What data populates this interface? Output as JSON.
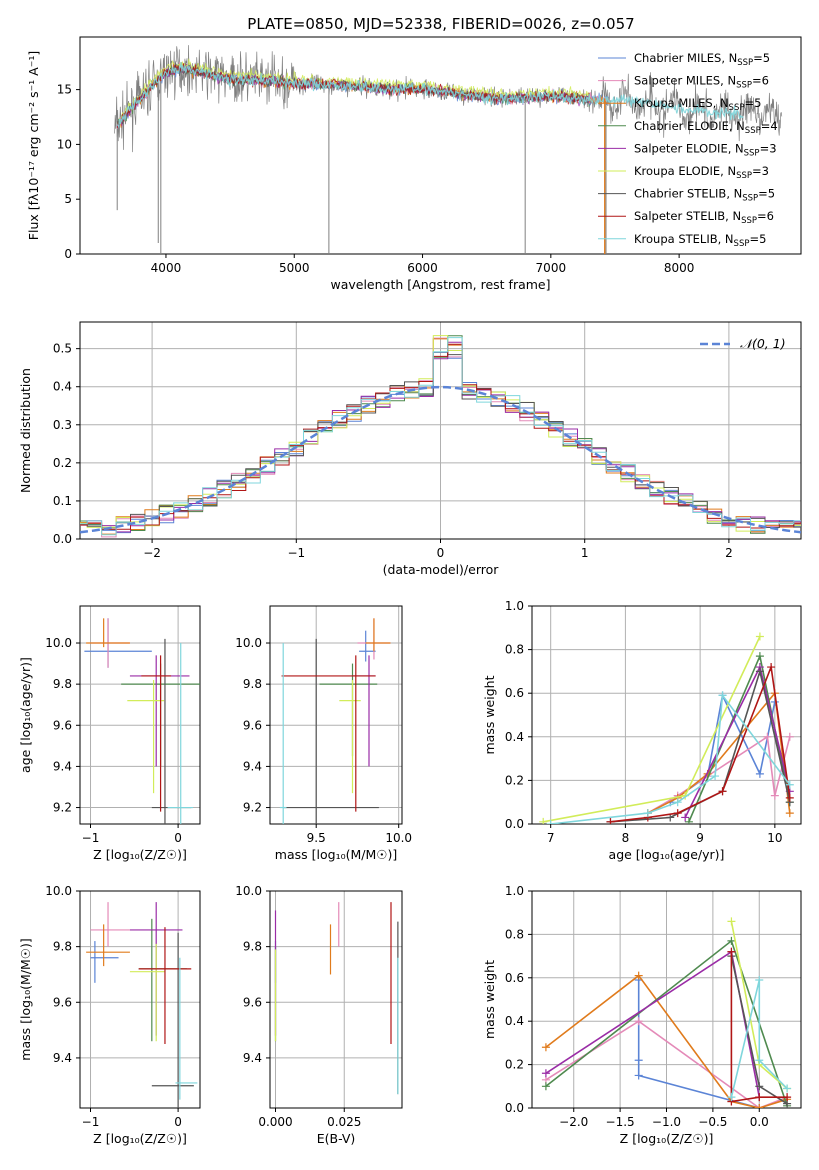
{
  "title": "PLATE=0850, MJD=52338, FIBERID=0026, z=0.057",
  "colors": {
    "chabrier_miles": "#5b84d6",
    "salpeter_miles": "#e48ab8",
    "kroupa_miles": "#e07b1c",
    "chabrier_elodie": "#4f8a4f",
    "salpeter_elodie": "#9a2ca6",
    "kroupa_elodie": "#d2ec5a",
    "chabrier_stelib": "#555555",
    "salpeter_stelib": "#b01616",
    "kroupa_stelib": "#7fd6dc",
    "data": "#808080",
    "normal": "#5b84d6",
    "grid": "#b0b0b0"
  },
  "chart_data": [
    {
      "id": "spectrum",
      "type": "line",
      "xlabel": "wavelength [Angstrom, rest frame]",
      "ylabel": "Flux [fλ10⁻¹⁷ erg cm⁻² s⁻¹ A⁻¹]",
      "xlim": [
        3330,
        8950
      ],
      "ylim": [
        0,
        19.8
      ],
      "xticks": [
        4000,
        5000,
        6000,
        7000,
        8000
      ],
      "yticks": [
        0,
        5,
        10,
        15
      ],
      "grid": false,
      "legend_position": "top-right",
      "legend": [
        {
          "label": "Chabrier MILES, N",
          "sub": "SSP",
          "val": "=5"
        },
        {
          "label": "Salpeter MILES, N",
          "sub": "SSP",
          "val": "=6"
        },
        {
          "label": "Kroupa MILES, N",
          "sub": "SSP",
          "val": "=5"
        },
        {
          "label": "Chabrier ELODIE, N",
          "sub": "SSP",
          "val": "=4"
        },
        {
          "label": "Salpeter ELODIE, N",
          "sub": "SSP",
          "val": "=3"
        },
        {
          "label": "Kroupa ELODIE, N",
          "sub": "SSP",
          "val": "=3"
        },
        {
          "label": "Chabrier STELIB, N",
          "sub": "SSP",
          "val": "=5"
        },
        {
          "label": "Salpeter STELIB, N",
          "sub": "SSP",
          "val": "=6"
        },
        {
          "label": "Kroupa STELIB, N",
          "sub": "SSP",
          "val": "=5"
        }
      ],
      "continuum": {
        "x": [
          3600,
          3750,
          3900,
          4000,
          4100,
          4300,
          4500,
          4800,
          5000,
          5200,
          5500,
          5800,
          6000,
          6300,
          6600,
          6800,
          7000,
          7200,
          7400,
          7600,
          7800,
          8000,
          8200,
          8500,
          8800
        ],
        "y": [
          11.5,
          13.5,
          15.5,
          16.5,
          17.0,
          16.5,
          16.0,
          15.8,
          15.6,
          15.5,
          15.3,
          15.0,
          15.1,
          14.6,
          14.2,
          14.3,
          14.4,
          14.2,
          14.0,
          14.0,
          13.7,
          13.3,
          13.0,
          12.8,
          12.6
        ]
      }
    },
    {
      "id": "residuals",
      "type": "bar",
      "xlabel": "(data-model)/error",
      "ylabel": "Normed distribution",
      "xlim": [
        -2.5,
        2.5
      ],
      "ylim": [
        0,
        0.57
      ],
      "xticks": [
        -2,
        -1,
        0,
        1,
        2
      ],
      "xticklabels": [
        "−2",
        "−1",
        "0",
        "1",
        "2"
      ],
      "yticks": [
        0.0,
        0.1,
        0.2,
        0.3,
        0.4,
        0.5
      ],
      "grid": true,
      "legend_position": "top-right",
      "legend_label": "𝒩(0, 1)",
      "bin_width": 0.1
    },
    {
      "id": "age-vs-Z",
      "type": "scatter",
      "xlabel": "Z [log₁₀(Z/Z☉)]",
      "ylabel": "age  [log₁₀(age/yr)]",
      "xlim": [
        -1.12,
        0.25
      ],
      "ylim": [
        9.12,
        10.18
      ],
      "xticks": [
        -1,
        0
      ],
      "xticklabels": [
        "−1",
        "0"
      ],
      "yticks": [
        9.2,
        9.4,
        9.6,
        9.8,
        10.0
      ],
      "grid": true,
      "points": [
        {
          "m": "chabrier_miles",
          "x": -0.8,
          "xerr": [
            0.27,
            0.5
          ],
          "y": 9.96,
          "yerr": [
            0.08,
            0.16
          ]
        },
        {
          "m": "salpeter_miles",
          "x": -0.8,
          "xerr": [
            0.2,
            0.25
          ],
          "y": 10.0,
          "yerr": [
            0.12,
            0.12
          ]
        },
        {
          "m": "kroupa_miles",
          "x": -0.85,
          "xerr": [
            0.2,
            0.3
          ],
          "y": 10.0,
          "yerr": [
            0.02,
            0.12
          ]
        },
        {
          "m": "chabrier_elodie",
          "x": -0.2,
          "xerr": [
            0.45,
            0.45
          ],
          "y": 9.8,
          "yerr": [
            0.4,
            0.1
          ]
        },
        {
          "m": "salpeter_elodie",
          "x": -0.25,
          "xerr": [
            0.3,
            0.38
          ],
          "y": 9.84,
          "yerr": [
            0.44,
            0.1
          ]
        },
        {
          "m": "kroupa_elodie",
          "x": -0.28,
          "xerr": [
            0.3,
            0.12
          ],
          "y": 9.72,
          "yerr": [
            0.45,
            0.1
          ]
        },
        {
          "m": "chabrier_stelib",
          "x": -0.15,
          "xerr": [
            0.15,
            0.3
          ],
          "y": 9.2,
          "yerr": [
            0.1,
            0.82
          ]
        },
        {
          "m": "salpeter_stelib",
          "x": -0.2,
          "xerr": [
            0.22,
            0.12
          ],
          "y": 9.84,
          "yerr": [
            0.66,
            0.1
          ]
        },
        {
          "m": "kroupa_stelib",
          "x": 0.03,
          "xerr": [
            0.15,
            0.14
          ],
          "y": 9.2,
          "yerr": [
            0.1,
            0.8
          ]
        }
      ]
    },
    {
      "id": "age-vs-mass",
      "type": "scatter",
      "xlabel": "mass [log₁₀(M/M☉)]",
      "xlim": [
        9.22,
        10.02
      ],
      "ylim": [
        9.12,
        10.18
      ],
      "xticks": [
        9.5,
        10.0
      ],
      "xticklabels": [
        "9.5",
        "10.0"
      ],
      "yticks": [
        9.2,
        9.4,
        9.6,
        9.8,
        10.0
      ],
      "grid": true,
      "points": [
        {
          "m": "chabrier_miles",
          "x": 9.8,
          "xerr": [
            0.04,
            0.06
          ],
          "y": 9.96,
          "yerr": [
            0.05,
            0.1
          ]
        },
        {
          "m": "salpeter_miles",
          "x": 9.85,
          "xerr": [
            0.1,
            0.1
          ],
          "y": 10.0,
          "yerr": [
            0.08,
            0.12
          ]
        },
        {
          "m": "kroupa_miles",
          "x": 9.85,
          "xerr": [
            0.05,
            0.1
          ],
          "y": 10.0,
          "yerr": [
            0.04,
            0.12
          ]
        },
        {
          "m": "chabrier_elodie",
          "x": 9.72,
          "xerr": [
            0.2,
            0.15
          ],
          "y": 9.8,
          "yerr": [
            0.35,
            0.1
          ]
        },
        {
          "m": "salpeter_elodie",
          "x": 9.82,
          "xerr": [
            0.1,
            0.04
          ],
          "y": 9.84,
          "yerr": [
            0.44,
            0.1
          ]
        },
        {
          "m": "kroupa_elodie",
          "x": 9.72,
          "xerr": [
            0.08,
            0.05
          ],
          "y": 9.72,
          "yerr": [
            0.45,
            0.1
          ]
        },
        {
          "m": "chabrier_stelib",
          "x": 9.5,
          "xerr": [
            0.2,
            0.38
          ],
          "y": 9.2,
          "yerr": [
            0.1,
            0.82
          ]
        },
        {
          "m": "salpeter_stelib",
          "x": 9.74,
          "xerr": [
            0.45,
            0.12
          ],
          "y": 9.84,
          "yerr": [
            0.66,
            0.1
          ]
        },
        {
          "m": "kroupa_stelib",
          "x": 9.3,
          "xerr": [
            0.02,
            0.02
          ],
          "y": 9.2,
          "yerr": [
            0.1,
            0.8
          ]
        }
      ]
    },
    {
      "id": "weight-vs-age",
      "type": "line",
      "xlabel": "age  [log₁₀(age/yr)]",
      "ylabel": "mass weight",
      "xlim": [
        6.75,
        10.35
      ],
      "ylim": [
        0,
        1.0
      ],
      "xticks": [
        7,
        8,
        9,
        10
      ],
      "yticks": [
        0.0,
        0.2,
        0.4,
        0.6,
        0.8,
        1.0
      ],
      "grid": true,
      "series": [
        {
          "m": "chabrier_miles",
          "x": [
            8.6,
            9.1,
            9.3,
            9.8,
            10.0
          ],
          "y": [
            0.1,
            0.22,
            0.59,
            0.23,
            0.56
          ]
        },
        {
          "m": "salpeter_miles",
          "x": [
            8.3,
            8.7,
            9.1,
            9.9,
            10.0,
            10.2
          ],
          "y": [
            0.05,
            0.13,
            0.22,
            0.4,
            0.13,
            0.4
          ]
        },
        {
          "m": "kroupa_miles",
          "x": [
            8.3,
            8.7,
            9.1,
            10.0,
            10.2
          ],
          "y": [
            0.05,
            0.12,
            0.23,
            0.6,
            0.05
          ]
        },
        {
          "m": "chabrier_elodie",
          "x": [
            8.85,
            9.8,
            10.2
          ],
          "y": [
            0.01,
            0.77,
            0.1
          ]
        },
        {
          "m": "salpeter_elodie",
          "x": [
            8.8,
            9.8,
            10.2
          ],
          "y": [
            0.03,
            0.72,
            0.15
          ]
        },
        {
          "m": "kroupa_elodie",
          "x": [
            6.9,
            8.8,
            9.8
          ],
          "y": [
            0.01,
            0.13,
            0.86
          ]
        },
        {
          "m": "chabrier_stelib",
          "x": [
            7.8,
            8.6,
            9.3,
            9.8,
            10.2
          ],
          "y": [
            0.01,
            0.03,
            0.15,
            0.7,
            0.1
          ]
        },
        {
          "m": "salpeter_stelib",
          "x": [
            7.8,
            8.3,
            8.7,
            9.3,
            9.95,
            10.2
          ],
          "y": [
            0.01,
            0.03,
            0.05,
            0.15,
            0.72,
            0.12
          ]
        },
        {
          "m": "kroupa_stelib",
          "x": [
            7.0,
            8.3,
            8.7,
            9.2,
            9.3,
            10.2
          ],
          "y": [
            0.0,
            0.05,
            0.1,
            0.22,
            0.59,
            0.18
          ]
        }
      ]
    },
    {
      "id": "mass-vs-Z",
      "type": "scatter",
      "xlabel": "Z [log₁₀(Z/Z☉)]",
      "ylabel": "mass [log₁₀(M/M☉)]",
      "xlim": [
        -1.12,
        0.25
      ],
      "ylim": [
        9.22,
        10.0
      ],
      "xticks": [
        -1,
        0
      ],
      "xticklabels": [
        "−1",
        "0"
      ],
      "yticks": [
        9.4,
        9.6,
        9.8,
        10.0
      ],
      "grid": true,
      "points": [
        {
          "m": "chabrier_miles",
          "x": -0.95,
          "xerr": [
            0.05,
            0.27
          ],
          "y": 9.76,
          "yerr": [
            0.09,
            0.06
          ]
        },
        {
          "m": "salpeter_miles",
          "x": -0.8,
          "xerr": [
            0.2,
            0.25
          ],
          "y": 9.86,
          "yerr": [
            0.06,
            0.1
          ]
        },
        {
          "m": "kroupa_miles",
          "x": -0.85,
          "xerr": [
            0.2,
            0.3
          ],
          "y": 9.78,
          "yerr": [
            0.05,
            0.1
          ]
        },
        {
          "m": "chabrier_elodie",
          "x": -0.3,
          "xerr": [
            0.15,
            0.4
          ],
          "y": 9.72,
          "yerr": [
            0.26,
            0.18
          ]
        },
        {
          "m": "salpeter_elodie",
          "x": -0.25,
          "xerr": [
            0.3,
            0.3
          ],
          "y": 9.86,
          "yerr": [
            0.38,
            0.1
          ]
        },
        {
          "m": "kroupa_elodie",
          "x": -0.25,
          "xerr": [
            0.3,
            0.1
          ],
          "y": 9.71,
          "yerr": [
            0.25,
            0.1
          ]
        },
        {
          "m": "chabrier_stelib",
          "x": 0.0,
          "xerr": [
            0.3,
            0.18
          ],
          "y": 9.3,
          "yerr": [
            0.1,
            0.55
          ]
        },
        {
          "m": "salpeter_stelib",
          "x": -0.15,
          "xerr": [
            0.3,
            0.3
          ],
          "y": 9.72,
          "yerr": [
            0.27,
            0.15
          ]
        },
        {
          "m": "kroupa_stelib",
          "x": 0.02,
          "xerr": [
            0.05,
            0.2
          ],
          "y": 9.31,
          "yerr": [
            0.06,
            0.45
          ]
        }
      ]
    },
    {
      "id": "mass-vs-ebv",
      "type": "scatter",
      "xlabel": "E(B-V)",
      "xlim": [
        -0.002,
        0.046
      ],
      "ylim": [
        9.22,
        10.0
      ],
      "xticks": [
        0.0,
        0.025
      ],
      "xticklabels": [
        "0.000",
        "0.025"
      ],
      "yticks": [
        9.4,
        9.6,
        9.8,
        10.0
      ],
      "grid": true,
      "points": [
        {
          "m": "chabrier_miles",
          "x": 0.0,
          "y": 9.76,
          "yerr": [
            0.09,
            0.06
          ]
        },
        {
          "m": "salpeter_miles",
          "x": 0.023,
          "y": 9.86,
          "yerr": [
            0.06,
            0.1
          ]
        },
        {
          "m": "kroupa_miles",
          "x": 0.02,
          "y": 9.78,
          "yerr": [
            0.08,
            0.1
          ]
        },
        {
          "m": "chabrier_elodie",
          "x": 0.0,
          "y": 9.65,
          "yerr": [
            0.19,
            0.15
          ]
        },
        {
          "m": "salpeter_elodie",
          "x": 0.0,
          "y": 9.86,
          "yerr": [
            0.38,
            0.07
          ]
        },
        {
          "m": "kroupa_elodie",
          "x": 0.0,
          "y": 9.71,
          "yerr": [
            0.25,
            0.08
          ]
        },
        {
          "m": "chabrier_stelib",
          "x": 0.0445,
          "y": 9.5,
          "yerr": [
            0.23,
            0.39
          ]
        },
        {
          "m": "salpeter_stelib",
          "x": 0.042,
          "y": 9.7,
          "yerr": [
            0.25,
            0.26
          ]
        },
        {
          "m": "kroupa_stelib",
          "x": 0.0445,
          "y": 9.5,
          "yerr": [
            0.23,
            0.26
          ]
        }
      ]
    },
    {
      "id": "weight-vs-Z",
      "type": "line",
      "xlabel": "Z [log₁₀(Z/Z☉)]",
      "ylabel": "mass weight",
      "xlim": [
        -2.45,
        0.45
      ],
      "ylim": [
        0,
        1.0
      ],
      "xticks": [
        -2.0,
        -1.5,
        -1.0,
        -0.5,
        0.0
      ],
      "xticklabels": [
        "−2.0",
        "−1.5",
        "−1.0",
        "−0.5",
        "0.0"
      ],
      "yticks": [
        0.0,
        0.2,
        0.4,
        0.6,
        0.8,
        1.0
      ],
      "grid": true,
      "series": [
        {
          "m": "chabrier_miles",
          "x": [
            -1.3,
            -1.3,
            -1.3,
            0.0
          ],
          "y": [
            0.59,
            0.22,
            0.15,
            0.0
          ]
        },
        {
          "m": "salpeter_miles",
          "x": [
            -2.3,
            -1.3,
            0.0,
            0.3
          ],
          "y": [
            0.13,
            0.4,
            0.0,
            0.05
          ]
        },
        {
          "m": "kroupa_miles",
          "x": [
            -2.3,
            -1.3,
            -0.3,
            0.0,
            0.3
          ],
          "y": [
            0.28,
            0.61,
            0.03,
            0.0,
            0.04
          ]
        },
        {
          "m": "chabrier_elodie",
          "x": [
            -2.3,
            -0.3,
            0.3
          ],
          "y": [
            0.1,
            0.77,
            0.01
          ]
        },
        {
          "m": "salpeter_elodie",
          "x": [
            -2.3,
            -0.3,
            0.0
          ],
          "y": [
            0.16,
            0.72,
            0.05
          ]
        },
        {
          "m": "kroupa_elodie",
          "x": [
            -0.3,
            0.0,
            0.3
          ],
          "y": [
            0.86,
            0.2,
            0.09
          ]
        },
        {
          "m": "chabrier_stelib",
          "x": [
            -0.3,
            0.0,
            0.3
          ],
          "y": [
            0.7,
            0.1,
            0.02
          ]
        },
        {
          "m": "salpeter_stelib",
          "x": [
            -0.3,
            -0.3,
            0.0,
            0.3
          ],
          "y": [
            0.72,
            0.03,
            0.05,
            0.05
          ]
        },
        {
          "m": "kroupa_stelib",
          "x": [
            -0.3,
            0.0,
            0.0,
            0.3
          ],
          "y": [
            0.05,
            0.59,
            0.22,
            0.09
          ]
        }
      ]
    }
  ]
}
